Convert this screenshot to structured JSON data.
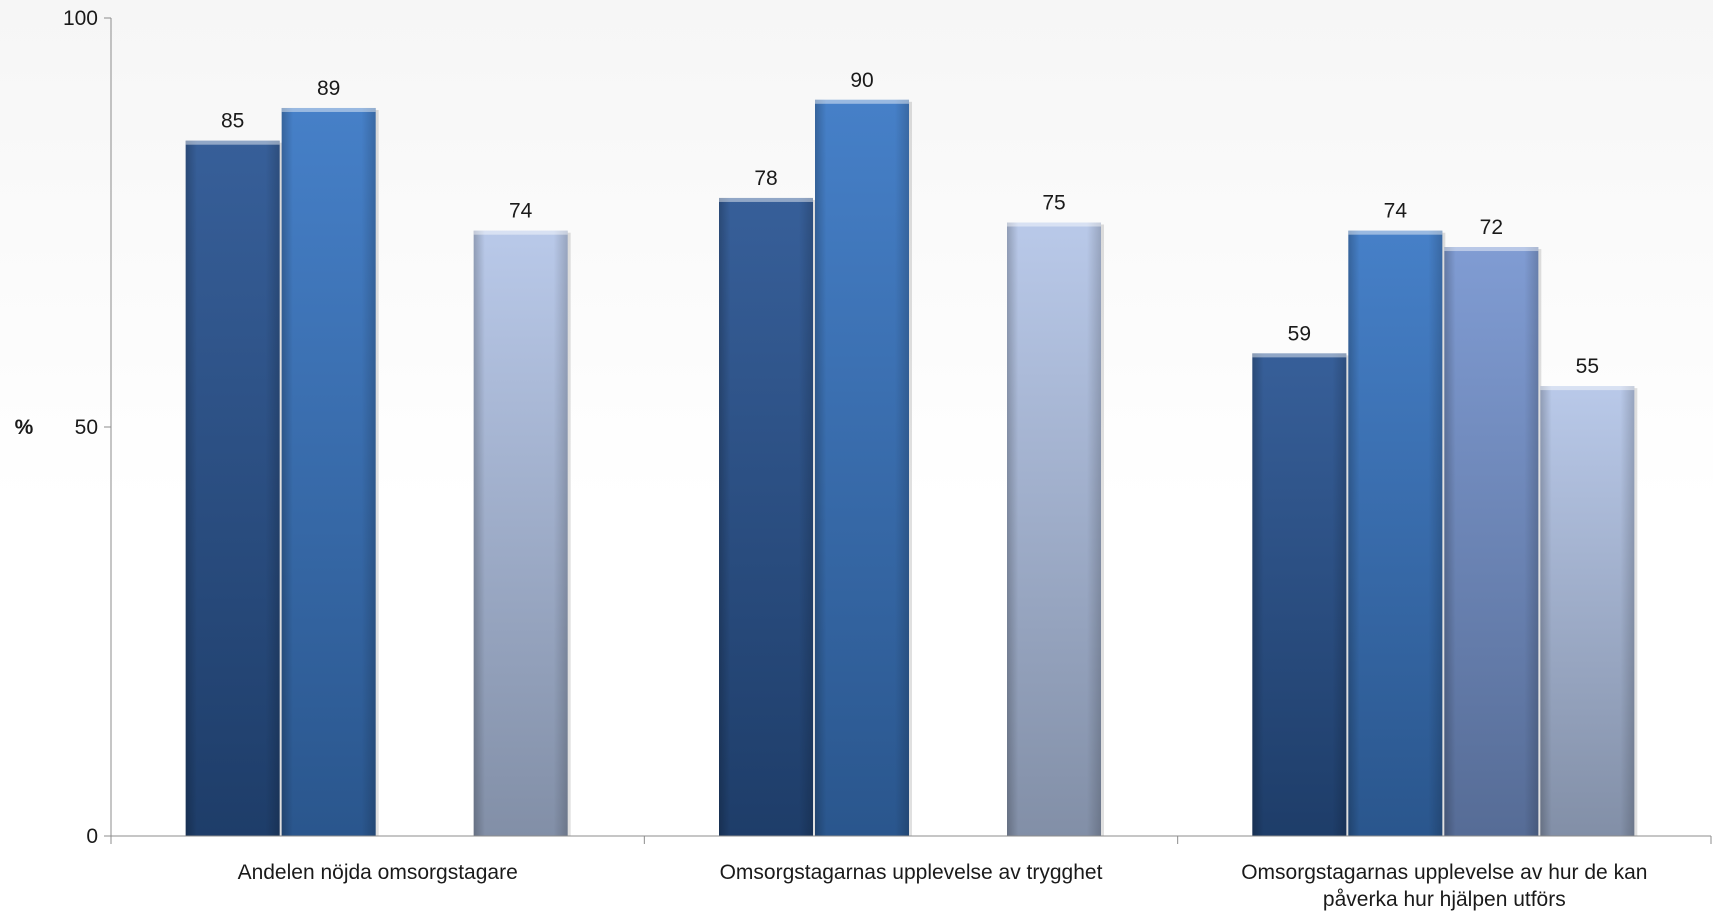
{
  "chart_data": {
    "type": "bar",
    "ylabel": "%",
    "ylim": [
      0,
      100
    ],
    "yticks": [
      "0",
      "50",
      "100"
    ],
    "categories": [
      [
        "Andelen nöjda omsorgstagare"
      ],
      [
        "Omsorgstagarnas upplevelse av trygghet"
      ],
      [
        "Omsorgstagarnas upplevelse av hur de kan",
        "påverka hur hjälpen utförs"
      ]
    ],
    "series": [
      {
        "color": "#2a5592",
        "values": [
          85,
          78,
          59
        ]
      },
      {
        "color": "#3a78c4",
        "values": [
          89,
          90,
          74
        ]
      },
      {
        "color": "#7896d0",
        "values": [
          null,
          null,
          72
        ]
      },
      {
        "color": "#b4c6e8",
        "values": [
          74,
          75,
          55
        ]
      }
    ],
    "grid": false,
    "legend": "none"
  }
}
